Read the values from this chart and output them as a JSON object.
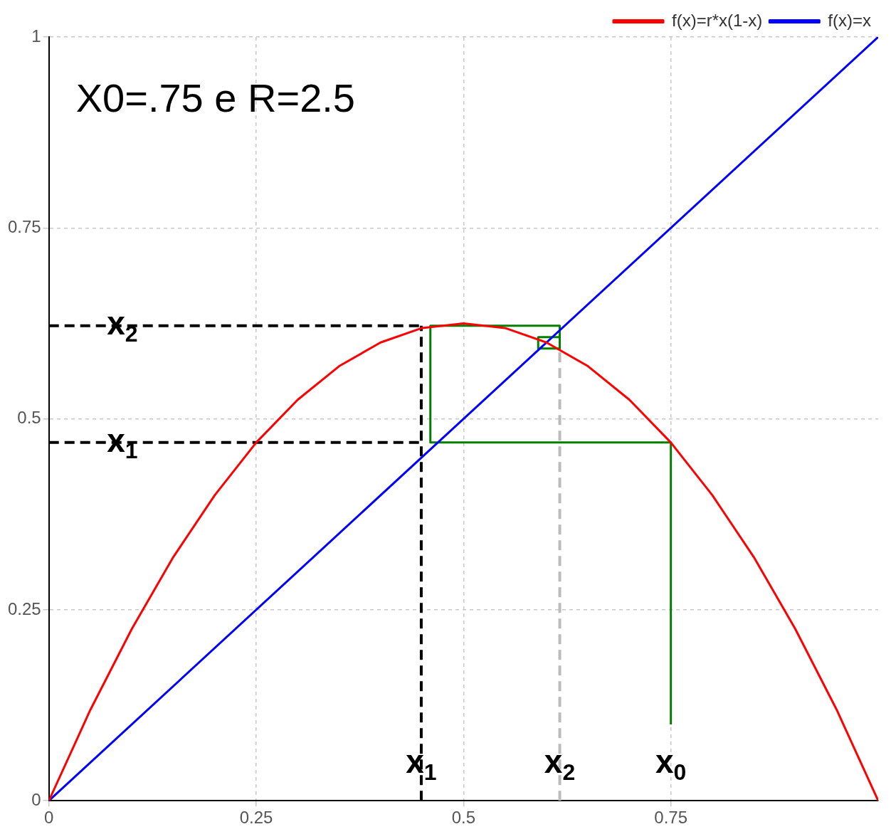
{
  "chart_data": {
    "type": "line",
    "xlim": [
      0,
      1
    ],
    "ylim": [
      0,
      1
    ],
    "xticks": [
      0,
      0.25,
      0.5,
      0.75
    ],
    "yticks": [
      0,
      0.25,
      0.5,
      0.75,
      1
    ],
    "grid": true,
    "legend": "top right",
    "marker": "none",
    "series": [
      {
        "name": "f(x)=r*x(1-x)",
        "color": "#ff0000",
        "x": [
          0,
          0.05,
          0.1,
          0.15,
          0.2,
          0.25,
          0.3,
          0.35,
          0.4,
          0.45,
          0.5,
          0.55,
          0.6,
          0.65,
          0.7,
          0.75,
          0.8,
          0.85,
          0.9,
          0.95,
          1
        ],
        "values": [
          0,
          0.119,
          0.225,
          0.319,
          0.4,
          0.469,
          0.525,
          0.569,
          0.6,
          0.619,
          0.625,
          0.619,
          0.6,
          0.569,
          0.525,
          0.469,
          0.4,
          0.319,
          0.225,
          0.119,
          0
        ]
      },
      {
        "name": "f(x)=x",
        "color": "#0000ff",
        "x": [
          0,
          1
        ],
        "values": [
          0,
          1
        ]
      },
      {
        "type": "line",
        "color": "#008000",
        "x": [
          0.75,
          0.75,
          0.46,
          0.46,
          0.616,
          0.616,
          0.59,
          0.59,
          0.616
        ],
        "values": [
          0.1,
          0.469,
          0.469,
          0.622,
          0.622,
          0.592,
          0.592,
          0.607,
          0.607
        ]
      },
      {
        "type": "line",
        "color": "#000000",
        "line_style": "dashed",
        "x": [
          0,
          0.449
        ],
        "values": [
          0.622,
          0.622
        ]
      },
      {
        "type": "line",
        "color": "#000000",
        "line_style": "dashed",
        "x": [
          0,
          0.449
        ],
        "values": [
          0.469,
          0.469
        ]
      },
      {
        "type": "line",
        "color": "#000000",
        "line_style": "dashed",
        "x": [
          0.449,
          0.449
        ],
        "values": [
          0,
          0.622
        ]
      },
      {
        "type": "line",
        "color": "#bbbbbb",
        "line_style": "dashed",
        "x": [
          0.616,
          0.616
        ],
        "values": [
          0,
          0.59
        ]
      }
    ],
    "annotations": [
      "X0=.75 e R=2.5",
      {
        "text": "x$_{2}$",
        "x": 0.07,
        "y": 0.622
      },
      {
        "text": "x$_{1}$",
        "x": 0.07,
        "y": 0.469
      },
      {
        "text": "x$_{1}$",
        "x": 0.449,
        "y": 0.1
      },
      {
        "text": "x$_{2}$",
        "x": 0.616,
        "y": 0.1
      },
      {
        "text": "x$_{0}$",
        "x": 0.75,
        "y": 0.1
      }
    ]
  }
}
